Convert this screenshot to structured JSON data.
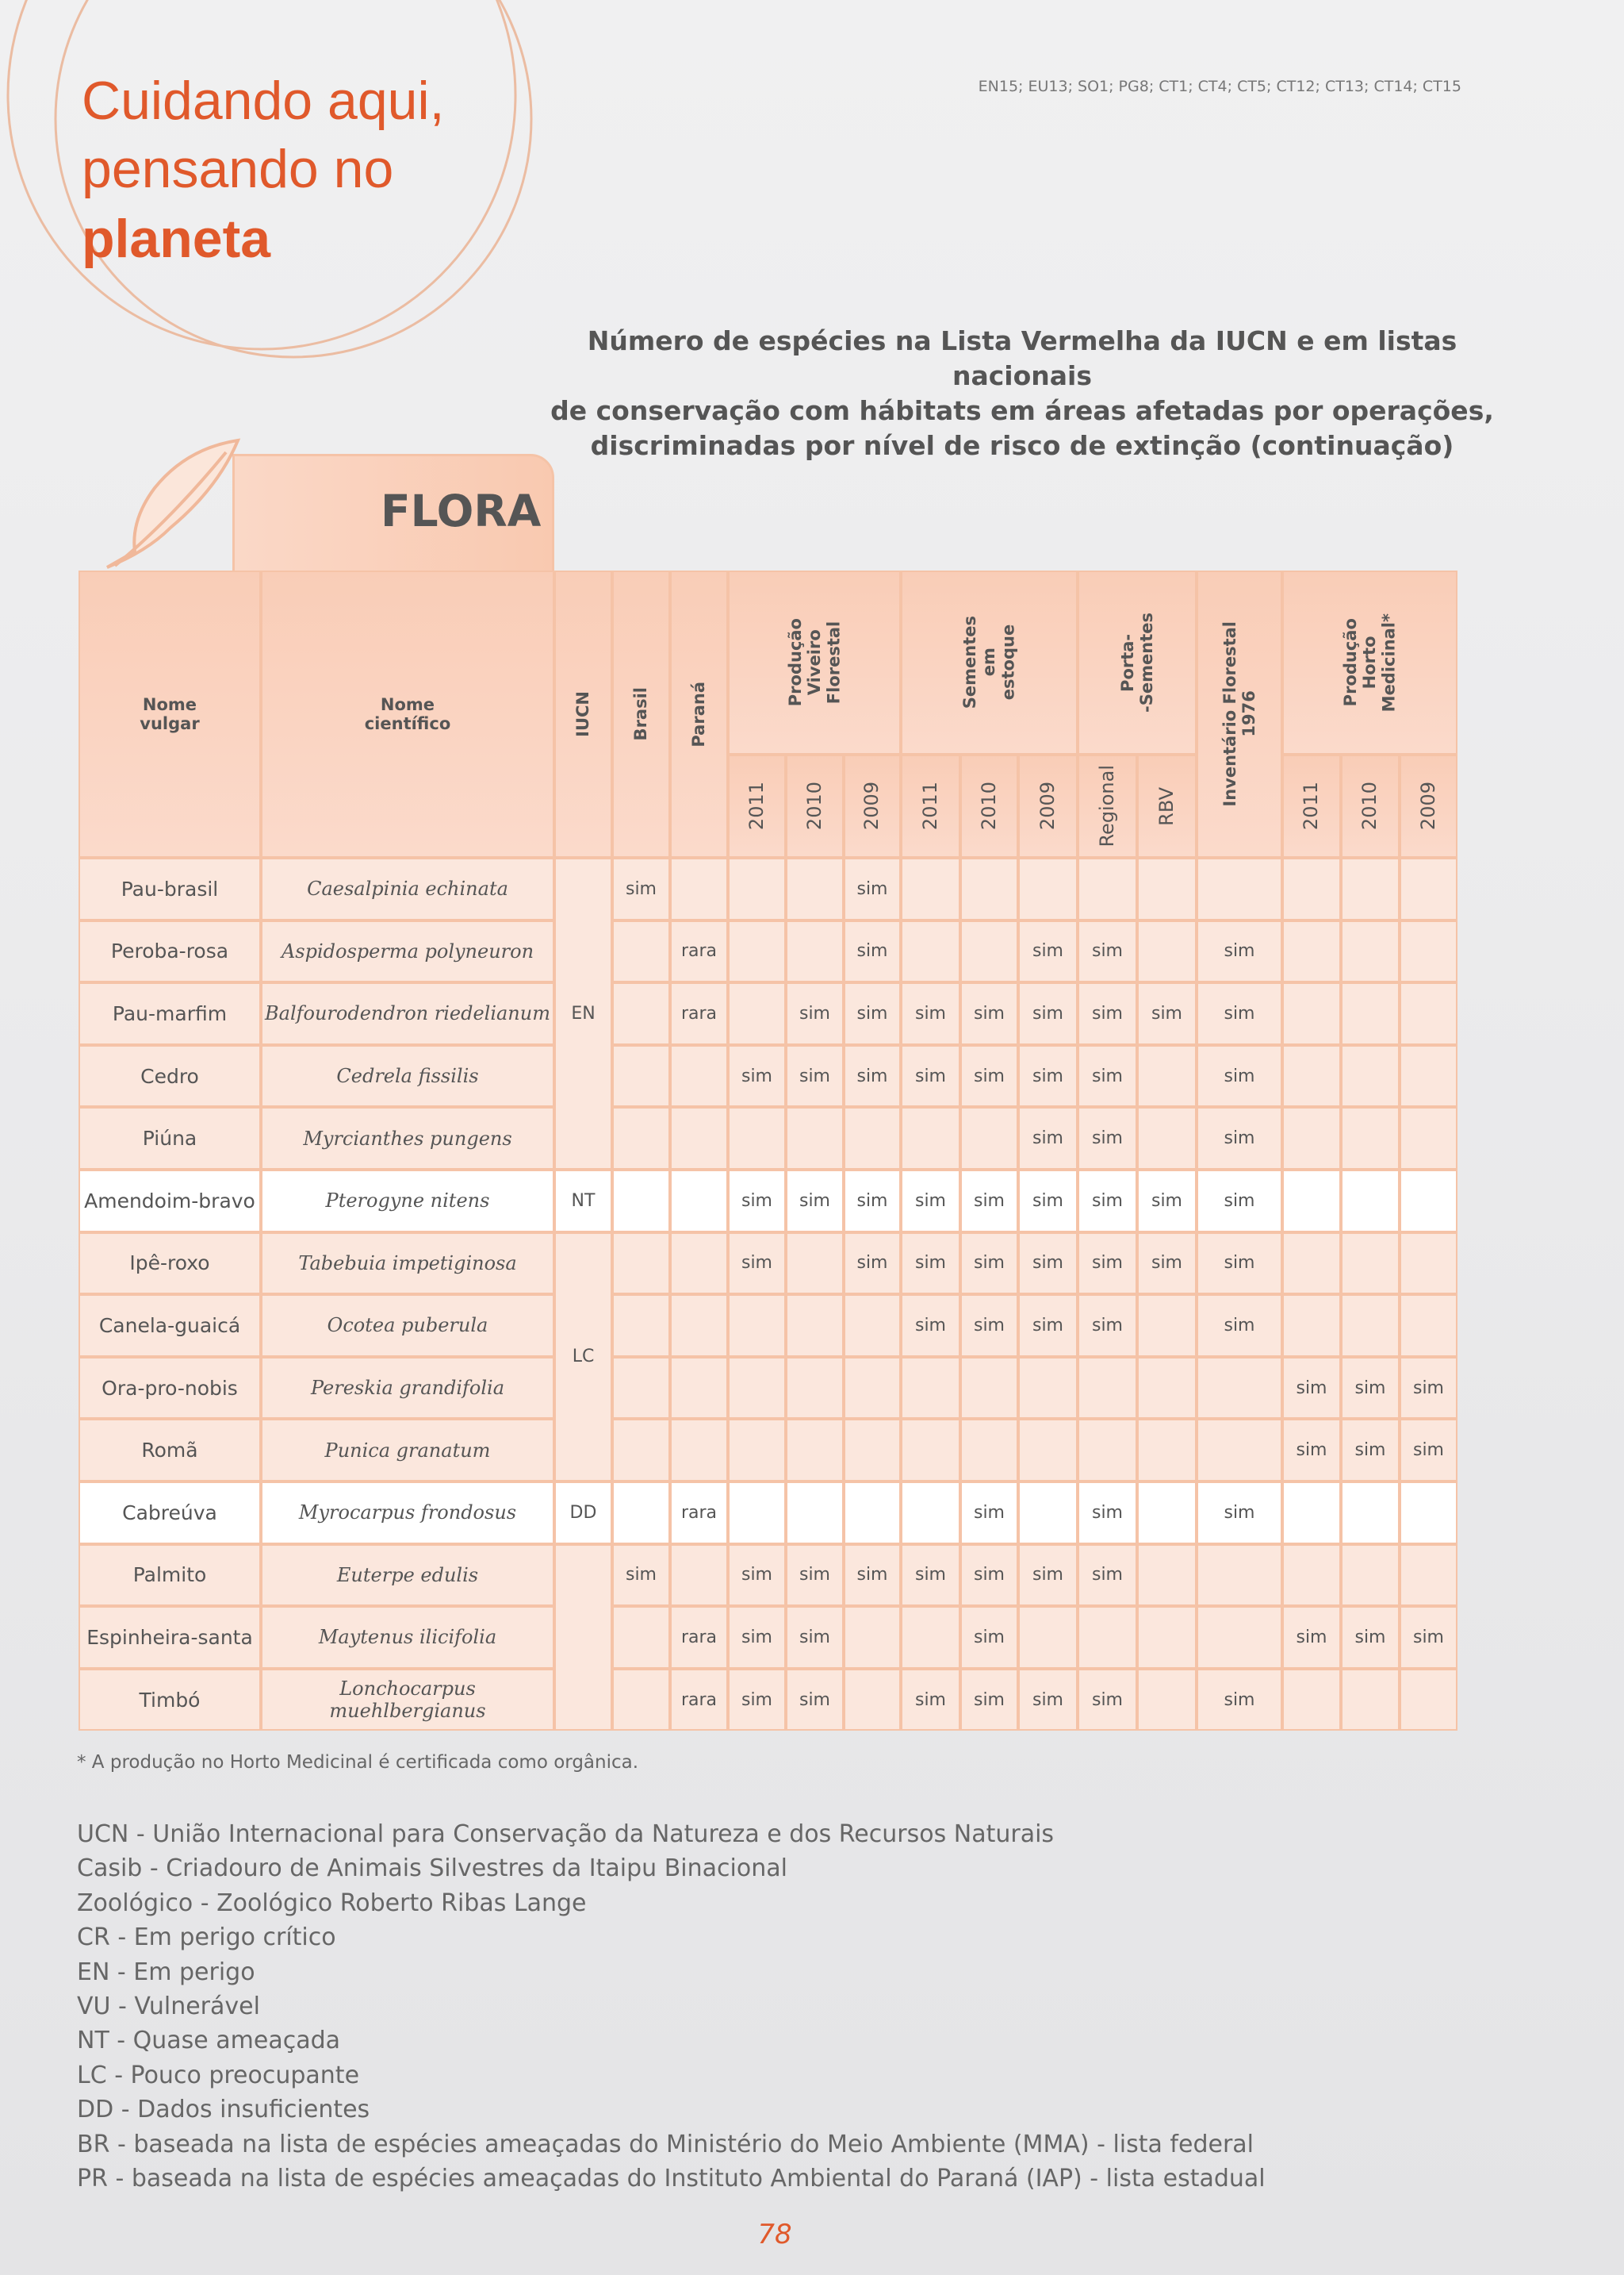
{
  "header": {
    "title_lines": [
      "Cuidando aqui,",
      "pensando no"
    ],
    "title_bold": "planeta",
    "codes": "EN15; EU13; SO1; PG8; CT1; CT4; CT5; CT12; CT13; CT14; CT15"
  },
  "subtitle": [
    "Número de espécies na Lista Vermelha da IUCN e em listas nacionais",
    "de conservação com hábitats em áreas afetadas por operações,",
    "discriminadas por nível de risco de extinção (continuação)"
  ],
  "section": "FLORA",
  "table": {
    "header": [
      {
        "label": "Nome\nvulgar"
      },
      {
        "label": "Nome\ncientífico"
      },
      {
        "label": "IUCN"
      },
      {
        "label": "Brasil"
      },
      {
        "label": "Paraná"
      },
      {
        "label": "Produção\nViveiro\nFlorestal",
        "sub": [
          "2011",
          "2010",
          "2009"
        ]
      },
      {
        "label": "Sementes\nem\nestoque",
        "sub": [
          "2011",
          "2010",
          "2009"
        ]
      },
      {
        "label": "Porta-\n-Sementes",
        "sub": [
          "Regional",
          "RBV"
        ]
      },
      {
        "label": "Inventário Florestal\n1976"
      },
      {
        "label": "Produção\nHorto\nMedicinal*",
        "sub": [
          "2011",
          "2010",
          "2009"
        ]
      }
    ],
    "iucn": [
      {
        "label": "EN",
        "rows": 5
      },
      {
        "label": "NT",
        "rows": 1
      },
      {
        "label": "LC",
        "rows": 4
      },
      {
        "label": "DD",
        "rows": 1
      },
      {
        "label": null,
        "rows": 3
      }
    ],
    "rows": [
      {
        "common": "Pau-brasil",
        "scientific": "Caesalpinia echinata",
        "cells": [
          "sim",
          null,
          null,
          null,
          "sim",
          null,
          null,
          null,
          null,
          null,
          null,
          null,
          null,
          null
        ]
      },
      {
        "common": "Peroba-rosa",
        "scientific": "Aspidosperma polyneuron",
        "cells": [
          null,
          "rara",
          null,
          null,
          "sim",
          null,
          null,
          "sim",
          "sim",
          null,
          "sim",
          null,
          null,
          null
        ]
      },
      {
        "common": "Pau-marfim",
        "scientific": "Balfourodendron riedelianum",
        "cells": [
          null,
          "rara",
          null,
          "sim",
          "sim",
          "sim",
          "sim",
          "sim",
          "sim",
          "sim",
          "sim",
          null,
          null,
          null
        ]
      },
      {
        "common": "Cedro",
        "scientific": "Cedrela fissilis",
        "cells": [
          null,
          null,
          "sim",
          "sim",
          "sim",
          "sim",
          "sim",
          "sim",
          "sim",
          null,
          "sim",
          null,
          null,
          null
        ]
      },
      {
        "common": "Piúna",
        "scientific": "Myrcianthes pungens",
        "cells": [
          null,
          null,
          null,
          null,
          null,
          null,
          null,
          "sim",
          "sim",
          null,
          "sim",
          null,
          null,
          null
        ]
      },
      {
        "common": "Amendoim-bravo",
        "scientific": "Pterogyne nitens",
        "cells": [
          null,
          null,
          "sim",
          "sim",
          "sim",
          "sim",
          "sim",
          "sim",
          "sim",
          "sim",
          "sim",
          null,
          null,
          null
        ]
      },
      {
        "common": "Ipê-roxo",
        "scientific": "Tabebuia impetiginosa",
        "cells": [
          null,
          null,
          "sim",
          null,
          "sim",
          "sim",
          "sim",
          "sim",
          "sim",
          "sim",
          "sim",
          null,
          null,
          null
        ]
      },
      {
        "common": "Canela-guaicá",
        "scientific": "Ocotea puberula",
        "cells": [
          null,
          null,
          null,
          null,
          null,
          "sim",
          "sim",
          "sim",
          "sim",
          null,
          "sim",
          null,
          null,
          null
        ]
      },
      {
        "common": "Ora-pro-nobis",
        "scientific": "Pereskia grandifolia",
        "cells": [
          null,
          null,
          null,
          null,
          null,
          null,
          null,
          null,
          null,
          null,
          null,
          "sim",
          "sim",
          "sim"
        ]
      },
      {
        "common": "Romã",
        "scientific": "Punica granatum",
        "cells": [
          null,
          null,
          null,
          null,
          null,
          null,
          null,
          null,
          null,
          null,
          null,
          "sim",
          "sim",
          "sim"
        ]
      },
      {
        "common": "Cabreúva",
        "scientific": "Myrocarpus frondosus",
        "cells": [
          null,
          "rara",
          null,
          null,
          null,
          null,
          "sim",
          null,
          "sim",
          null,
          "sim",
          null,
          null,
          null
        ]
      },
      {
        "common": "Palmito",
        "scientific": "Euterpe edulis",
        "cells": [
          "sim",
          null,
          "sim",
          "sim",
          "sim",
          "sim",
          "sim",
          "sim",
          "sim",
          null,
          null,
          null,
          null,
          null
        ]
      },
      {
        "common": "Espinheira-santa",
        "scientific": "Maytenus ilicifolia",
        "cells": [
          null,
          "rara",
          "sim",
          "sim",
          null,
          null,
          "sim",
          null,
          null,
          null,
          null,
          "sim",
          "sim",
          "sim"
        ]
      },
      {
        "common": "Timbó",
        "scientific": "Lonchocarpus muehlbergianus",
        "cells": [
          null,
          "rara",
          "sim",
          "sim",
          null,
          "sim",
          "sim",
          "sim",
          "sim",
          null,
          "sim",
          null,
          null,
          null
        ]
      }
    ]
  },
  "footnote": "* A produção no Horto Medicinal é certificada como orgânica.",
  "legend": [
    "UCN - União Internacional para Conservação da Natureza e dos Recursos Naturais",
    "Casib - Criadouro de Animais Silvestres da Itaipu Binacional",
    "Zoológico - Zoológico Roberto Ribas Lange",
    "CR - Em perigo crítico",
    "EN - Em perigo",
    "VU - Vulnerável",
    "NT - Quase ameaçada",
    "LC - Pouco preocupante",
    "DD - Dados insuficientes",
    "BR - baseada na lista de espécies ameaçadas do Ministério do Meio Ambiente (MMA) - lista federal",
    "PR - baseada na lista de espécies ameaçadas do Instituto Ambiental do Paraná (IAP) - lista estadual"
  ],
  "page_number": "78"
}
